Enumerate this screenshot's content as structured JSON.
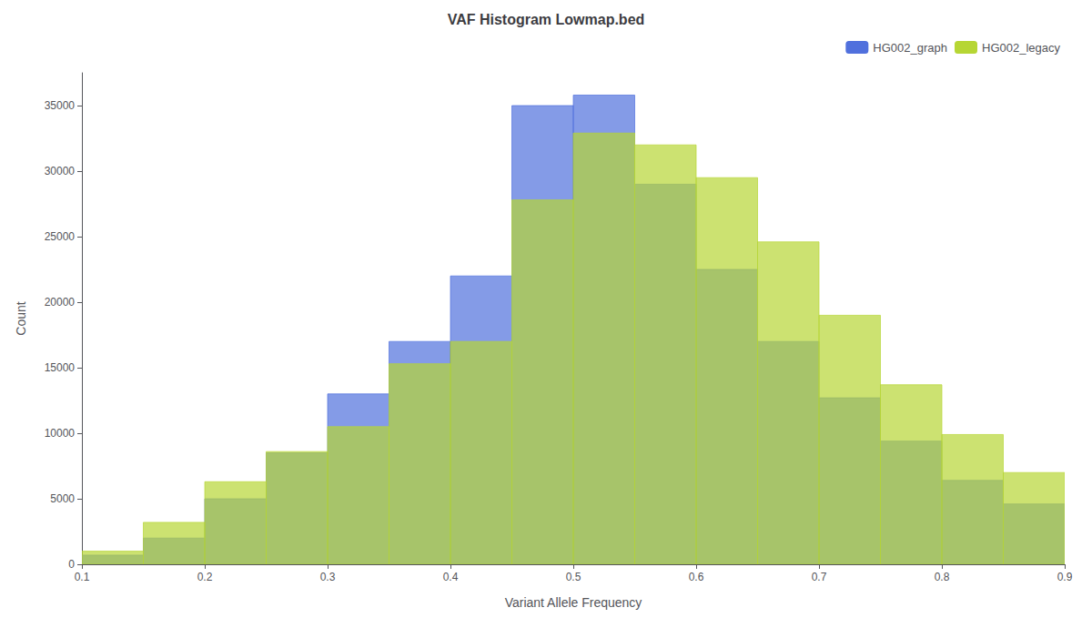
{
  "chart_data": {
    "type": "histogram",
    "title": "VAF Histogram Lowmap.bed",
    "xlabel": "Variant Allele Frequency",
    "ylabel": "Count",
    "bins": [
      0.1,
      0.15,
      0.2,
      0.25,
      0.3,
      0.35,
      0.4,
      0.45,
      0.5,
      0.55,
      0.6,
      0.65,
      0.7,
      0.75,
      0.8,
      0.85,
      0.9
    ],
    "series": [
      {
        "name": "HG002_graph",
        "values": [
          700,
          2000,
          5000,
          8500,
          13000,
          17000,
          22000,
          35000,
          35800,
          29000,
          22500,
          17000,
          12700,
          9400,
          6400,
          4600
        ]
      },
      {
        "name": "HG002_legacy",
        "values": [
          1000,
          3200,
          6300,
          8600,
          10500,
          15300,
          17000,
          27800,
          32900,
          32000,
          29500,
          24600,
          19000,
          13700,
          9900,
          7000
        ]
      }
    ],
    "xlim": [
      0.1,
      0.9
    ],
    "ylim": [
      0,
      37500
    ],
    "xticks": [
      0.1,
      0.2,
      0.3,
      0.4,
      0.5,
      0.6,
      0.7,
      0.8,
      0.9
    ],
    "yticks": [
      0,
      5000,
      10000,
      15000,
      20000,
      25000,
      30000,
      35000
    ],
    "grid": false,
    "legend": "upper right"
  }
}
